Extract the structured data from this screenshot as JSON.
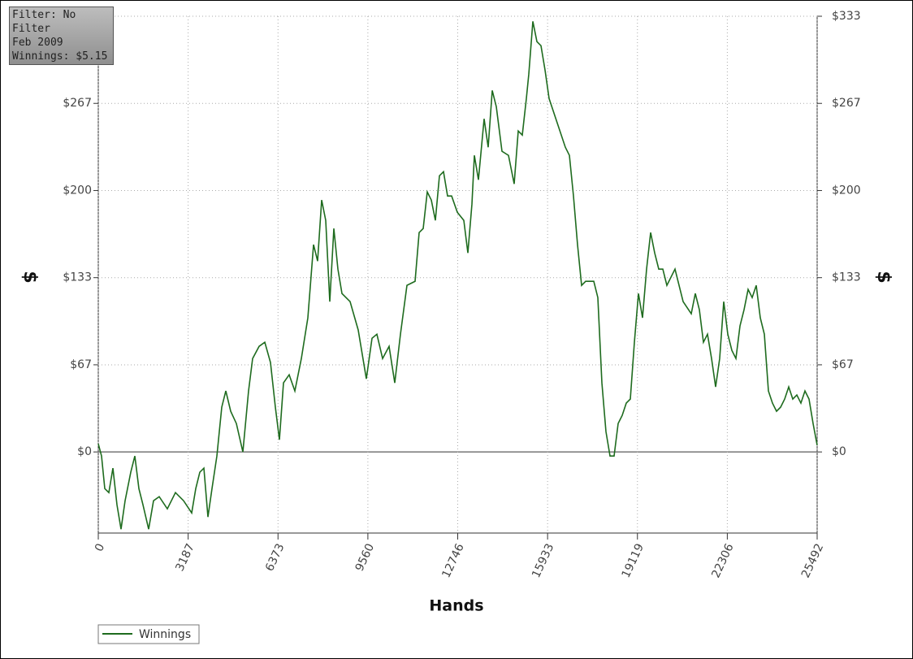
{
  "chart_data": {
    "type": "line",
    "annotations": [
      "Filter: No Filter",
      "Feb 2009",
      "Winnings: $5.15"
    ],
    "x_label": "Hands",
    "y_label": "$",
    "xlim": [
      0,
      25492
    ],
    "xticks": [
      0,
      3187,
      6373,
      9560,
      12746,
      15933,
      19119,
      22306,
      25492
    ],
    "ylim": [
      -62,
      333
    ],
    "yticks": [
      {
        "value": 0,
        "label": "$0"
      },
      {
        "value": 66.6,
        "label": "$67"
      },
      {
        "value": 133.2,
        "label": "$133"
      },
      {
        "value": 199.8,
        "label": "$200"
      },
      {
        "value": 266.4,
        "label": "$267"
      },
      {
        "value": 333,
        "label": "$333"
      }
    ],
    "grid": true,
    "series": [
      {
        "name": "Winnings",
        "color": "#1e6b1e",
        "x": [
          0,
          115,
          230,
          374,
          518,
          662,
          806,
          950,
          1152,
          1296,
          1440,
          1584,
          1786,
          1959,
          2160,
          2448,
          2736,
          3024,
          3312,
          3456,
          3600,
          3744,
          3888,
          4032,
          4205,
          4378,
          4522,
          4695,
          4896,
          5126,
          5328,
          5472,
          5703,
          5904,
          6106,
          6279,
          6423,
          6567,
          6769,
          6971,
          7201,
          7432,
          7633,
          7777,
          7921,
          8065,
          8209,
          8353,
          8497,
          8642,
          8930,
          9218,
          9506,
          9707,
          9880,
          10082,
          10312,
          10514,
          10716,
          10946,
          11234,
          11378,
          11522,
          11666,
          11810,
          11954,
          12098,
          12242,
          12386,
          12530,
          12732,
          12962,
          13106,
          13250,
          13337,
          13481,
          13682,
          13826,
          13970,
          14114,
          14316,
          14547,
          14748,
          14892,
          15036,
          15180,
          15267,
          15411,
          15555,
          15699,
          15843,
          15987,
          16275,
          16563,
          16707,
          16851,
          16995,
          17139,
          17283,
          17571,
          17715,
          17859,
          18003,
          18147,
          18291,
          18435,
          18579,
          18723,
          18867,
          19011,
          19155,
          19299,
          19443,
          19587,
          19731,
          19875,
          20019,
          20164,
          20452,
          20740,
          21028,
          21172,
          21316,
          21460,
          21604,
          21748,
          21892,
          22036,
          22180,
          22324,
          22468,
          22612,
          22756,
          22900,
          23044,
          23188,
          23332,
          23476,
          23620,
          23764,
          23908,
          24052,
          24196,
          24340,
          24484,
          24628,
          24772,
          24916,
          25060,
          25204,
          25348,
          25492
        ],
        "values": [
          6.2,
          -3.1,
          -28.0,
          -31.1,
          -12.4,
          -40.4,
          -59.0,
          -37.3,
          -15.5,
          -3.1,
          -28.0,
          -40.4,
          -59.0,
          -37.3,
          -34.2,
          -43.5,
          -31.1,
          -37.3,
          -46.6,
          -28.0,
          -15.5,
          -12.4,
          -49.7,
          -28.0,
          -3.1,
          34.2,
          46.6,
          31.1,
          21.7,
          0,
          46.6,
          71.4,
          80.7,
          83.8,
          68.3,
          34.2,
          9.3,
          52.8,
          59.0,
          46.6,
          71.4,
          102.5,
          158.4,
          145.9,
          192.5,
          177.0,
          114.9,
          170.8,
          139.7,
          121.1,
          114.9,
          93.2,
          55.9,
          86.9,
          90.0,
          71.4,
          80.7,
          52.8,
          90.0,
          127.3,
          130.4,
          167.7,
          170.8,
          198.7,
          192.5,
          177.0,
          211.1,
          214.2,
          195.6,
          195.6,
          183.2,
          177.0,
          152.1,
          189.4,
          226.7,
          208.0,
          254.6,
          232.9,
          276.3,
          263.9,
          229.8,
          226.7,
          204.9,
          245.3,
          242.2,
          270.1,
          288.8,
          329.1,
          313.6,
          310.5,
          291.9,
          270.1,
          251.5,
          232.9,
          226.7,
          195.6,
          158.4,
          127.3,
          130.4,
          130.4,
          118.0,
          52.8,
          15.5,
          -3.1,
          -3.1,
          21.7,
          27.9,
          37.3,
          40.4,
          83.8,
          121.1,
          102.5,
          139.7,
          167.7,
          152.1,
          139.7,
          139.7,
          127.3,
          139.7,
          114.9,
          105.6,
          121.1,
          108.7,
          83.8,
          90.0,
          71.4,
          49.7,
          71.4,
          114.9,
          90.0,
          77.6,
          71.4,
          96.3,
          108.7,
          124.2,
          118.0,
          127.3,
          102.5,
          90.0,
          46.6,
          37.3,
          31.1,
          34.2,
          40.4,
          49.7,
          40.4,
          43.5,
          37.3,
          46.6,
          40.4,
          21.7,
          5.15
        ]
      }
    ]
  }
}
